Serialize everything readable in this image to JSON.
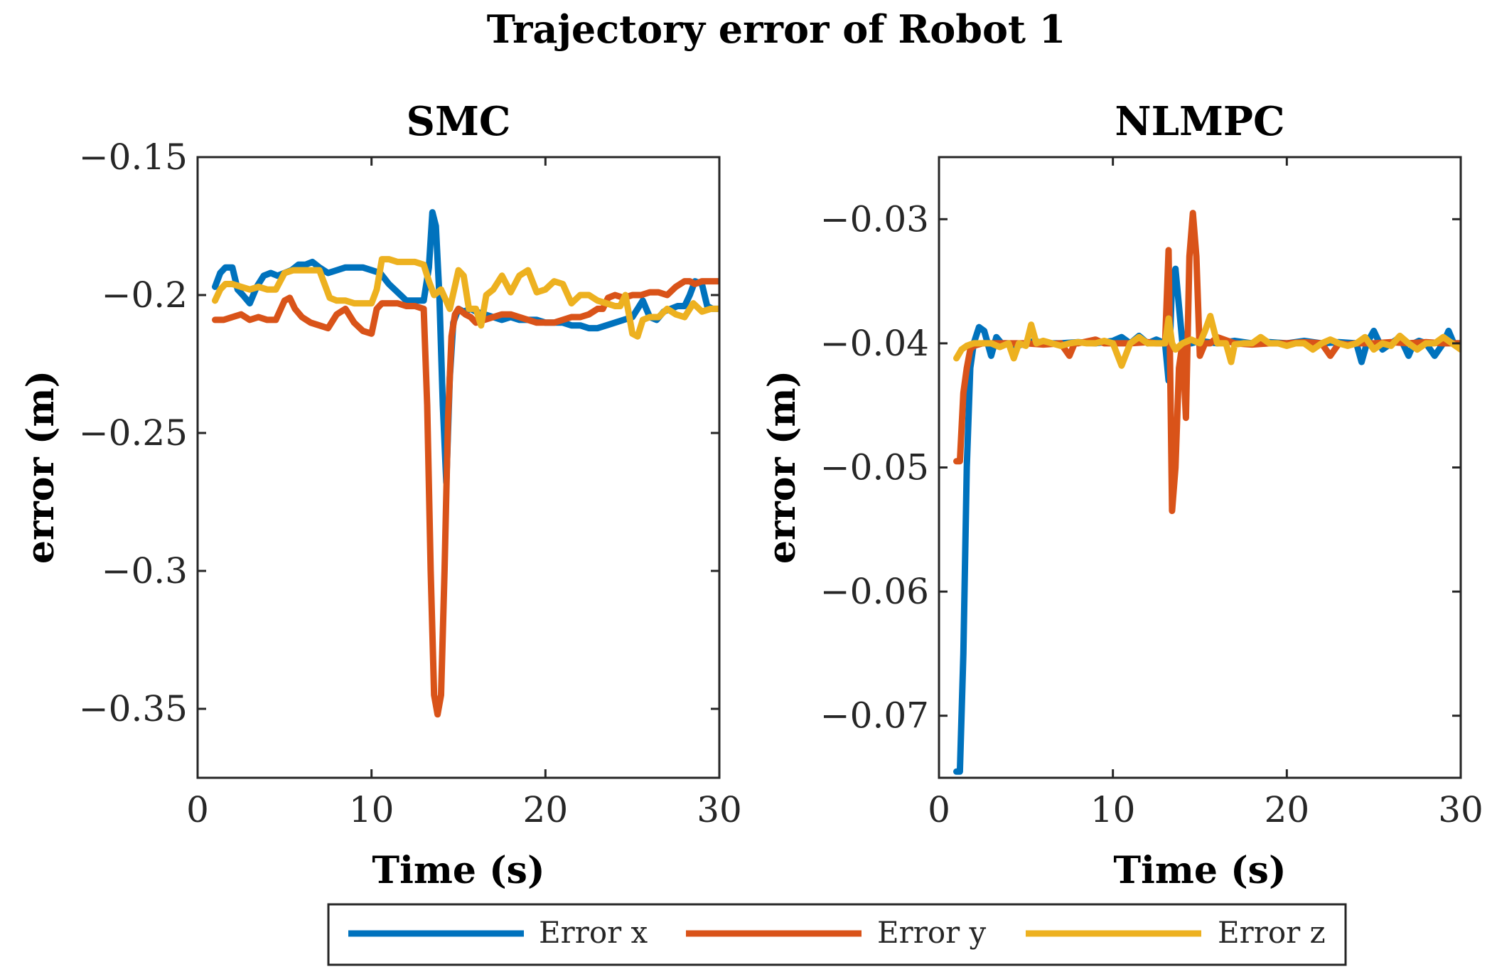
{
  "chart_data": [
    {
      "type": "line",
      "figure_title": "Trajectory error of Robot 1",
      "title": "SMC",
      "xlabel": "Time (s)",
      "ylabel": "error (m)",
      "xlim": [
        0,
        30
      ],
      "ylim": [
        -0.375,
        -0.15
      ],
      "xticks": [
        0,
        10,
        20,
        30
      ],
      "xtick_labels": [
        "0",
        "10",
        "20",
        "30"
      ],
      "yticks": [
        -0.15,
        -0.2,
        -0.25,
        -0.3,
        -0.35
      ],
      "ytick_labels": [
        "−0.15",
        "−0.2",
        "−0.25",
        "−0.3",
        "−0.35"
      ],
      "series": [
        {
          "name": "Error x",
          "color": "#0072BD",
          "x": [
            1,
            1.3,
            1.6,
            2,
            2.3,
            2.6,
            3,
            3.4,
            3.8,
            4.2,
            4.6,
            5,
            5.4,
            5.8,
            6.2,
            6.6,
            7,
            7.5,
            8,
            8.5,
            9,
            9.5,
            10,
            10.5,
            11,
            11.5,
            12,
            12.5,
            13,
            13.3,
            13.5,
            13.7,
            13.9,
            14.1,
            14.3,
            14.5,
            14.7,
            15,
            15.3,
            15.7,
            16,
            16.5,
            17,
            17.5,
            18,
            18.5,
            19,
            19.5,
            20,
            20.5,
            21,
            21.5,
            22,
            22.5,
            23,
            23.5,
            24,
            24.5,
            25,
            25.3,
            25.6,
            26,
            26.4,
            26.8,
            27.2,
            27.6,
            28,
            28.3,
            28.6,
            29,
            29.3,
            29.6,
            30
          ],
          "y": [
            -0.197,
            -0.192,
            -0.19,
            -0.19,
            -0.198,
            -0.2,
            -0.203,
            -0.197,
            -0.193,
            -0.192,
            -0.193,
            -0.192,
            -0.191,
            -0.189,
            -0.189,
            -0.188,
            -0.19,
            -0.192,
            -0.191,
            -0.19,
            -0.19,
            -0.19,
            -0.191,
            -0.192,
            -0.196,
            -0.199,
            -0.202,
            -0.202,
            -0.202,
            -0.19,
            -0.17,
            -0.175,
            -0.2,
            -0.24,
            -0.268,
            -0.23,
            -0.21,
            -0.205,
            -0.206,
            -0.205,
            -0.206,
            -0.207,
            -0.208,
            -0.209,
            -0.208,
            -0.209,
            -0.209,
            -0.209,
            -0.21,
            -0.21,
            -0.21,
            -0.211,
            -0.211,
            -0.212,
            -0.212,
            -0.211,
            -0.21,
            -0.209,
            -0.208,
            -0.205,
            -0.202,
            -0.208,
            -0.209,
            -0.206,
            -0.205,
            -0.204,
            -0.204,
            -0.2,
            -0.195,
            -0.196,
            -0.204,
            -0.205,
            -0.205
          ]
        },
        {
          "name": "Error y",
          "color": "#D95319",
          "x": [
            1,
            1.5,
            2,
            2.5,
            3,
            3.5,
            4,
            4.5,
            5,
            5.3,
            5.6,
            6,
            6.5,
            7,
            7.5,
            8,
            8.5,
            9,
            9.5,
            10,
            10.3,
            10.6,
            11,
            11.5,
            12,
            12.5,
            13,
            13.2,
            13.4,
            13.6,
            13.8,
            14,
            14.2,
            14.4,
            14.6,
            14.8,
            15,
            15.2,
            15.4,
            15.7,
            16,
            16.5,
            17,
            17.5,
            18,
            18.5,
            19,
            19.5,
            20,
            20.5,
            21,
            21.5,
            22,
            22.5,
            23,
            23.3,
            23.6,
            24,
            24.5,
            25,
            25.5,
            26,
            26.5,
            27,
            27.5,
            28,
            28.3,
            28.6,
            29,
            29.5,
            30
          ],
          "y": [
            -0.209,
            -0.209,
            -0.208,
            -0.207,
            -0.209,
            -0.208,
            -0.209,
            -0.209,
            -0.202,
            -0.201,
            -0.205,
            -0.208,
            -0.21,
            -0.211,
            -0.212,
            -0.207,
            -0.205,
            -0.21,
            -0.213,
            -0.214,
            -0.205,
            -0.203,
            -0.203,
            -0.203,
            -0.204,
            -0.204,
            -0.205,
            -0.24,
            -0.3,
            -0.345,
            -0.352,
            -0.345,
            -0.3,
            -0.245,
            -0.215,
            -0.207,
            -0.205,
            -0.206,
            -0.207,
            -0.208,
            -0.21,
            -0.209,
            -0.208,
            -0.207,
            -0.207,
            -0.208,
            -0.209,
            -0.21,
            -0.21,
            -0.21,
            -0.209,
            -0.208,
            -0.208,
            -0.207,
            -0.205,
            -0.205,
            -0.201,
            -0.2,
            -0.201,
            -0.2,
            -0.2,
            -0.199,
            -0.199,
            -0.2,
            -0.197,
            -0.195,
            -0.195,
            -0.196,
            -0.195,
            -0.195,
            -0.195
          ]
        },
        {
          "name": "Error z",
          "color": "#EDB120",
          "x": [
            1,
            1.3,
            1.6,
            2,
            2.5,
            3,
            3.5,
            4,
            4.5,
            5,
            5.5,
            6,
            6.5,
            7,
            7.3,
            7.6,
            8,
            8.5,
            9,
            9.5,
            10,
            10.3,
            10.6,
            11,
            11.5,
            12,
            12.5,
            13,
            13.3,
            13.6,
            14,
            14.5,
            15,
            15.3,
            15.6,
            16,
            16.3,
            16.6,
            17,
            17.5,
            18,
            18.5,
            19,
            19.5,
            20,
            20.5,
            21,
            21.5,
            22,
            22.5,
            23,
            23.5,
            24,
            24.3,
            24.6,
            25,
            25.3,
            25.6,
            26,
            26.5,
            27,
            27.5,
            28,
            28.5,
            29,
            29.5,
            30
          ],
          "y": [
            -0.202,
            -0.198,
            -0.196,
            -0.196,
            -0.197,
            -0.198,
            -0.197,
            -0.198,
            -0.198,
            -0.192,
            -0.191,
            -0.191,
            -0.191,
            -0.191,
            -0.196,
            -0.201,
            -0.202,
            -0.202,
            -0.203,
            -0.203,
            -0.203,
            -0.198,
            -0.187,
            -0.187,
            -0.188,
            -0.188,
            -0.188,
            -0.189,
            -0.195,
            -0.2,
            -0.198,
            -0.205,
            -0.191,
            -0.193,
            -0.205,
            -0.205,
            -0.211,
            -0.2,
            -0.198,
            -0.193,
            -0.199,
            -0.193,
            -0.191,
            -0.199,
            -0.198,
            -0.195,
            -0.196,
            -0.203,
            -0.2,
            -0.2,
            -0.202,
            -0.203,
            -0.204,
            -0.204,
            -0.2,
            -0.214,
            -0.215,
            -0.209,
            -0.208,
            -0.208,
            -0.205,
            -0.207,
            -0.208,
            -0.203,
            -0.206,
            -0.205,
            -0.205
          ]
        }
      ]
    },
    {
      "type": "line",
      "title": "NLMPC",
      "xlabel": "Time (s)",
      "ylabel": "error (m)",
      "xlim": [
        0,
        30
      ],
      "ylim": [
        -0.075,
        -0.025
      ],
      "xticks": [
        0,
        10,
        20,
        30
      ],
      "xtick_labels": [
        "0",
        "10",
        "20",
        "30"
      ],
      "yticks": [
        -0.03,
        -0.04,
        -0.05,
        -0.06,
        -0.07
      ],
      "ytick_labels": [
        "−0.03",
        "−0.04",
        "−0.05",
        "−0.06",
        "−0.07"
      ],
      "series": [
        {
          "name": "Error x",
          "color": "#0072BD",
          "x": [
            1,
            1.2,
            1.4,
            1.6,
            1.8,
            2,
            2.3,
            2.6,
            3,
            3.3,
            3.6,
            4,
            4.5,
            5,
            5.5,
            6,
            7,
            8,
            9,
            10,
            10.5,
            11,
            11.5,
            12,
            12.5,
            13,
            13.2,
            13.4,
            13.6,
            13.8,
            14,
            14.5,
            15,
            16,
            17,
            18,
            19,
            20,
            21,
            22,
            23,
            24,
            24.3,
            24.6,
            25,
            25.5,
            26,
            26.5,
            27,
            27.3,
            27.6,
            28,
            28.5,
            29,
            29.3,
            29.6,
            30
          ],
          "y": [
            -0.0745,
            -0.0745,
            -0.065,
            -0.05,
            -0.042,
            -0.04,
            -0.0387,
            -0.039,
            -0.041,
            -0.0395,
            -0.04,
            -0.04,
            -0.0402,
            -0.04,
            -0.0398,
            -0.04,
            -0.04,
            -0.0399,
            -0.04,
            -0.0398,
            -0.0395,
            -0.04,
            -0.0394,
            -0.04,
            -0.0397,
            -0.04,
            -0.043,
            -0.035,
            -0.034,
            -0.037,
            -0.04,
            -0.04,
            -0.0398,
            -0.04,
            -0.0398,
            -0.04,
            -0.0399,
            -0.04,
            -0.0398,
            -0.04,
            -0.0399,
            -0.04,
            -0.0415,
            -0.04,
            -0.039,
            -0.0405,
            -0.04,
            -0.0395,
            -0.041,
            -0.04,
            -0.0398,
            -0.04,
            -0.041,
            -0.04,
            -0.039,
            -0.04,
            -0.04
          ]
        },
        {
          "name": "Error y",
          "color": "#D95319",
          "x": [
            1,
            1.2,
            1.4,
            1.6,
            1.8,
            2,
            2.5,
            3,
            4,
            5,
            6,
            7,
            7.5,
            7.8,
            8,
            9,
            9.5,
            10,
            11,
            12,
            12.5,
            13,
            13.2,
            13.4,
            13.6,
            13.8,
            14,
            14.2,
            14.4,
            14.6,
            14.8,
            15,
            15.3,
            15.6,
            16,
            17,
            18,
            19,
            20,
            21,
            22,
            22.5,
            23,
            23.5,
            24,
            25,
            26,
            27,
            28,
            29,
            30
          ],
          "y": [
            -0.0495,
            -0.0495,
            -0.044,
            -0.042,
            -0.0405,
            -0.0402,
            -0.04,
            -0.04,
            -0.04,
            -0.04,
            -0.0401,
            -0.04,
            -0.041,
            -0.04,
            -0.04,
            -0.0397,
            -0.04,
            -0.04,
            -0.04,
            -0.0399,
            -0.04,
            -0.04,
            -0.0325,
            -0.0535,
            -0.05,
            -0.042,
            -0.04,
            -0.046,
            -0.033,
            -0.0295,
            -0.033,
            -0.041,
            -0.04,
            -0.04,
            -0.0395,
            -0.04,
            -0.0401,
            -0.04,
            -0.04,
            -0.0399,
            -0.04,
            -0.041,
            -0.04,
            -0.0401,
            -0.04,
            -0.04,
            -0.0399,
            -0.04,
            -0.0399,
            -0.04,
            -0.04
          ]
        },
        {
          "name": "Error z",
          "color": "#EDB120",
          "x": [
            1,
            1.3,
            1.6,
            2,
            2.5,
            3,
            3.5,
            4,
            4.3,
            4.6,
            5,
            5.3,
            5.6,
            6,
            6.5,
            7,
            7.5,
            8,
            8.5,
            9,
            9.5,
            10,
            10.5,
            11,
            11.5,
            12,
            12.5,
            13,
            13.2,
            13.4,
            13.6,
            14,
            14.5,
            15,
            15.3,
            15.6,
            16,
            16.5,
            16.8,
            17,
            17.5,
            18,
            18.5,
            19,
            19.5,
            20,
            20.5,
            21,
            21.5,
            22,
            22.5,
            23,
            23.5,
            24,
            24.5,
            25,
            25.5,
            26,
            26.5,
            27,
            27.5,
            28,
            28.5,
            29,
            29.5,
            30
          ],
          "y": [
            -0.0412,
            -0.0405,
            -0.0402,
            -0.04,
            -0.04,
            -0.04,
            -0.0403,
            -0.04,
            -0.0412,
            -0.04,
            -0.0402,
            -0.0385,
            -0.04,
            -0.0398,
            -0.04,
            -0.0402,
            -0.04,
            -0.0399,
            -0.04,
            -0.04,
            -0.0398,
            -0.04,
            -0.0418,
            -0.04,
            -0.0395,
            -0.04,
            -0.04,
            -0.04,
            -0.038,
            -0.04,
            -0.0405,
            -0.04,
            -0.0397,
            -0.04,
            -0.039,
            -0.0378,
            -0.04,
            -0.04,
            -0.0415,
            -0.0401,
            -0.04,
            -0.04,
            -0.0395,
            -0.04,
            -0.04,
            -0.0402,
            -0.04,
            -0.04,
            -0.0405,
            -0.04,
            -0.0397,
            -0.04,
            -0.0402,
            -0.04,
            -0.0395,
            -0.0405,
            -0.04,
            -0.0402,
            -0.0394,
            -0.04,
            -0.0405,
            -0.04,
            -0.04,
            -0.0395,
            -0.04,
            -0.0405
          ]
        }
      ]
    }
  ],
  "legend": {
    "items": [
      {
        "label": "Error x",
        "color": "#0072BD"
      },
      {
        "label": "Error y",
        "color": "#D95319"
      },
      {
        "label": "Error z",
        "color": "#EDB120"
      }
    ]
  }
}
